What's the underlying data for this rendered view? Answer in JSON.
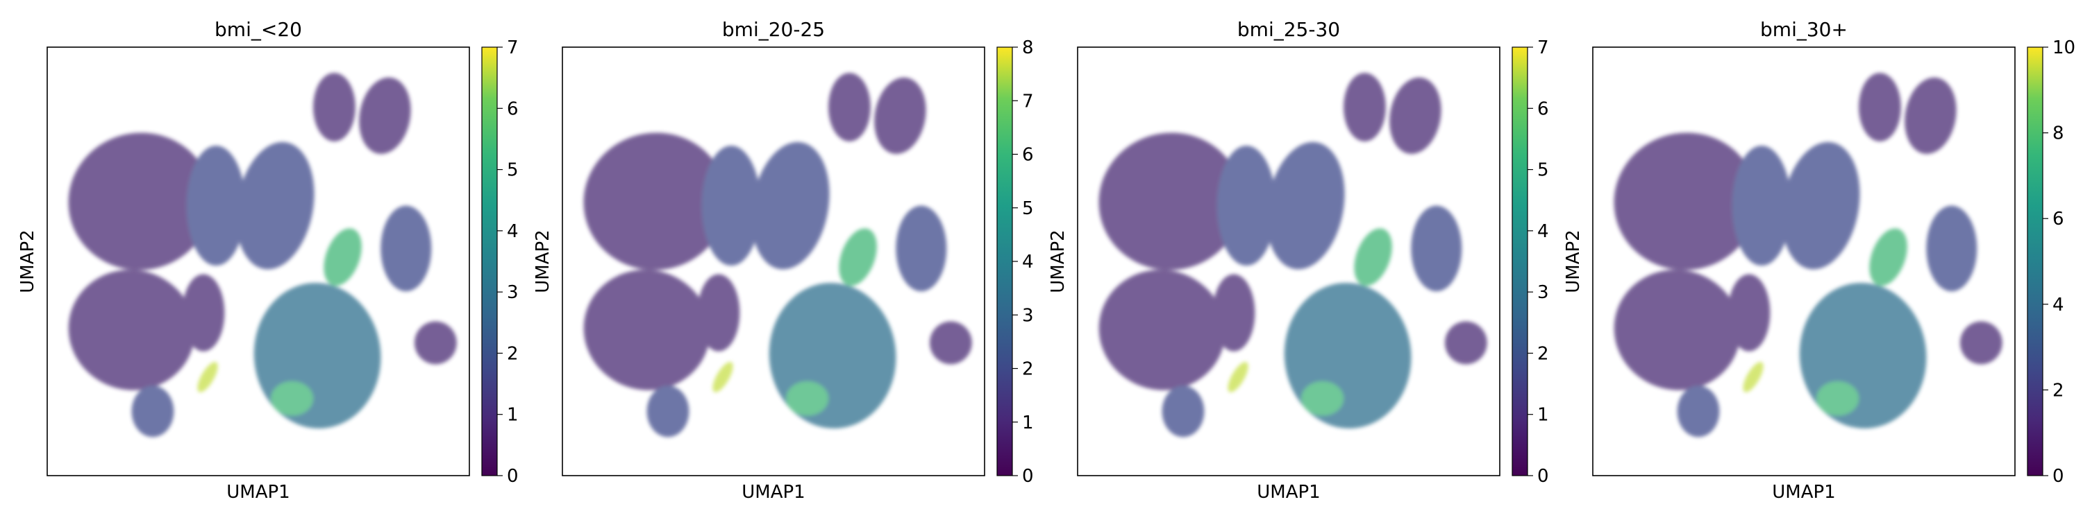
{
  "chart_data": [
    {
      "type": "scatter",
      "title": "bmi_<20",
      "xlabel": "UMAP1",
      "ylabel": "UMAP2",
      "colormap": "viridis",
      "colorbar": {
        "min": 0,
        "max": 7,
        "ticks": [
          "0",
          "1",
          "2",
          "3",
          "4",
          "5",
          "6",
          "7"
        ]
      },
      "grid": false,
      "legend": "none"
    },
    {
      "type": "scatter",
      "title": "bmi_20-25",
      "xlabel": "UMAP1",
      "ylabel": "UMAP2",
      "colormap": "viridis",
      "colorbar": {
        "min": 0,
        "max": 8,
        "ticks": [
          "0",
          "1",
          "2",
          "3",
          "4",
          "5",
          "6",
          "7",
          "8"
        ]
      },
      "grid": false,
      "legend": "none"
    },
    {
      "type": "scatter",
      "title": "bmi_25-30",
      "xlabel": "UMAP1",
      "ylabel": "UMAP2",
      "colormap": "viridis",
      "colorbar": {
        "min": 0,
        "max": 7,
        "ticks": [
          "0",
          "1",
          "2",
          "3",
          "4",
          "5",
          "6",
          "7"
        ]
      },
      "grid": false,
      "legend": "none"
    },
    {
      "type": "scatter",
      "title": "bmi_30+",
      "xlabel": "UMAP1",
      "ylabel": "UMAP2",
      "colormap": "viridis",
      "colorbar": {
        "min": 0,
        "max": 10,
        "ticks": [
          "0",
          "2",
          "4",
          "6",
          "8",
          "10"
        ]
      },
      "grid": false,
      "legend": "none"
    }
  ]
}
